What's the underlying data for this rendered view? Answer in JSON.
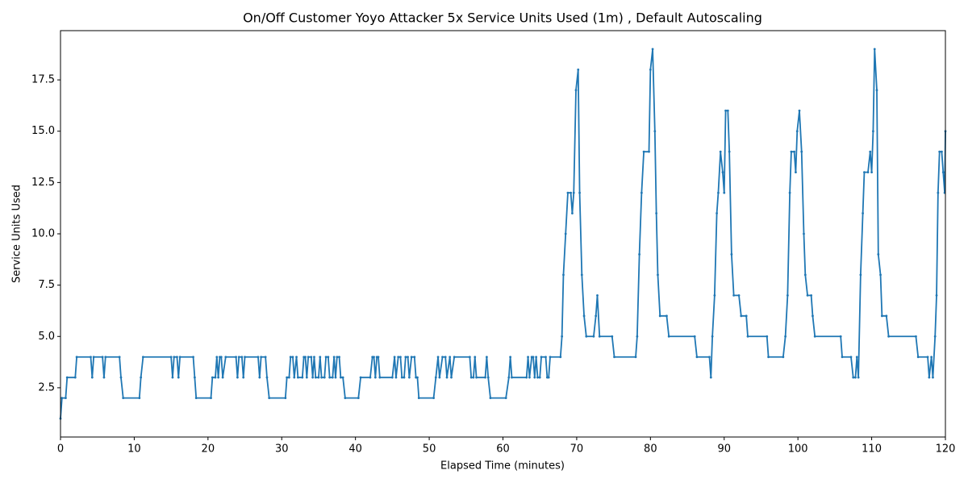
{
  "chart_data": {
    "type": "line",
    "title": "On/Off Customer Yoyo Attacker 5x Service Units Used (1m) , Default Autoscaling",
    "x_label": "Elapsed Time (minutes)",
    "y_label": "Service Units Used",
    "color": "#1f77b4",
    "xlim": [
      0,
      120
    ],
    "ylim": [
      0.1,
      19.9
    ],
    "xticks": [
      0,
      10,
      20,
      30,
      40,
      50,
      60,
      70,
      80,
      90,
      100,
      110,
      120
    ],
    "yticks": [
      2.5,
      {
        "value": 5,
        "label": "5.0"
      },
      7.5,
      {
        "value": 10,
        "label": "10.0"
      },
      12.5,
      {
        "value": 15,
        "label": "15.0"
      },
      17.5
    ],
    "x": [
      0,
      0.2,
      0.7,
      0.9,
      2,
      2.2,
      4.1,
      4.3,
      4.5,
      5.7,
      5.9,
      6.1,
      8,
      8.2,
      8.5,
      10.7,
      10.9,
      11.2,
      15,
      15.2,
      15.4,
      15.8,
      16,
      16.2,
      18,
      18.2,
      18.4,
      20.4,
      20.6,
      21,
      21.2,
      21.4,
      21.6,
      21.8,
      22,
      22.4,
      23.8,
      24,
      24.2,
      24.6,
      24.8,
      25,
      26.8,
      27,
      27.2,
      27.8,
      28,
      28.3,
      30.5,
      30.7,
      31,
      31.2,
      31.5,
      31.7,
      32,
      32.2,
      32.8,
      33,
      33.2,
      33.4,
      33.6,
      34,
      34.2,
      34.4,
      34.6,
      35,
      35.2,
      35.4,
      35.8,
      36,
      36.3,
      36.5,
      36.9,
      37.1,
      37.3,
      37.5,
      37.8,
      38,
      38.3,
      38.6,
      40.4,
      40.7,
      42,
      42.3,
      42.5,
      42.7,
      42.9,
      43.1,
      43.3,
      45,
      45.3,
      45.5,
      45.8,
      46.1,
      46.3,
      46.6,
      46.8,
      47.1,
      47.3,
      47.6,
      48,
      48.2,
      48.4,
      48.6,
      50.6,
      50.9,
      51.2,
      51.4,
      51.8,
      52.2,
      52.4,
      52.8,
      53,
      53.4,
      55.5,
      55.7,
      56,
      56.2,
      56.4,
      57.6,
      57.8,
      58,
      58.3,
      60.4,
      60.8,
      61,
      61.2,
      63.2,
      63.4,
      63.6,
      63.9,
      64.1,
      64.3,
      64.5,
      64.7,
      65,
      65.2,
      65.8,
      66,
      66.2,
      66.4,
      67.8,
      68,
      68.2,
      68.5,
      68.8,
      69.2,
      69.4,
      69.6,
      69.9,
      70.2,
      70.4,
      70.7,
      71,
      71.3,
      72.3,
      72.6,
      72.8,
      73.1,
      74.8,
      75.1,
      78,
      78.2,
      78.5,
      78.8,
      79.1,
      79.8,
      80,
      80.3,
      80.6,
      80.8,
      81,
      81.3,
      82.2,
      82.5,
      86,
      86.3,
      88,
      88.2,
      88.4,
      88.7,
      89,
      89.2,
      89.5,
      89.8,
      90,
      90.2,
      90.5,
      90.7,
      91,
      91.3,
      92,
      92.3,
      93,
      93.2,
      95.8,
      96,
      98,
      98.3,
      98.6,
      98.9,
      99.1,
      99.5,
      99.7,
      99.9,
      100.2,
      100.5,
      100.8,
      101,
      101.3,
      101.8,
      102,
      102.3,
      105.8,
      106,
      107.2,
      107.5,
      107.8,
      108,
      108.2,
      108.5,
      108.8,
      109,
      109.5,
      109.8,
      110,
      110.2,
      110.4,
      110.7,
      110.9,
      111.2,
      111.4,
      112,
      112.3,
      116,
      116.3,
      117.6,
      117.8,
      118.1,
      118.3,
      118.6,
      118.8,
      119,
      119.2,
      119.5,
      119.7,
      119.9,
      120
    ],
    "values": [
      1,
      2,
      2,
      3,
      3,
      4,
      4,
      3,
      4,
      4,
      3,
      4,
      4,
      3,
      2,
      2,
      3,
      4,
      4,
      3,
      4,
      4,
      3,
      4,
      4,
      3,
      2,
      2,
      3,
      3,
      4,
      3,
      4,
      4,
      3,
      4,
      4,
      3,
      4,
      4,
      3,
      4,
      4,
      3,
      4,
      4,
      3,
      2,
      2,
      3,
      3,
      4,
      4,
      3,
      4,
      3,
      3,
      4,
      4,
      3,
      4,
      4,
      3,
      4,
      3,
      3,
      4,
      3,
      3,
      4,
      4,
      3,
      3,
      4,
      3,
      4,
      4,
      3,
      3,
      2,
      2,
      3,
      3,
      4,
      4,
      3,
      4,
      4,
      3,
      3,
      4,
      3,
      4,
      4,
      3,
      3,
      4,
      4,
      3,
      4,
      4,
      3,
      3,
      2,
      2,
      3,
      4,
      3,
      4,
      4,
      3,
      4,
      3,
      4,
      4,
      3,
      3,
      4,
      3,
      3,
      4,
      3,
      2,
      2,
      3,
      4,
      3,
      3,
      4,
      3,
      4,
      4,
      3,
      4,
      3,
      3,
      4,
      4,
      3,
      3,
      4,
      4,
      5,
      8,
      10,
      12,
      12,
      11,
      12,
      17,
      18,
      12,
      8,
      6,
      5,
      5,
      6,
      7,
      5,
      5,
      4,
      4,
      5,
      9,
      12,
      14,
      14,
      18,
      19,
      15,
      11,
      8,
      6,
      6,
      5,
      5,
      4,
      4,
      3,
      5,
      7,
      11,
      12,
      14,
      13,
      12,
      16,
      16,
      14,
      9,
      7,
      7,
      6,
      6,
      5,
      5,
      4,
      4,
      5,
      7,
      12,
      14,
      14,
      13,
      15,
      16,
      14,
      10,
      8,
      7,
      7,
      6,
      5,
      5,
      4,
      4,
      3,
      3,
      4,
      3,
      8,
      11,
      13,
      13,
      14,
      13,
      15,
      19,
      17,
      9,
      8,
      6,
      6,
      5,
      5,
      4,
      4,
      3,
      4,
      3,
      5,
      7,
      12,
      14,
      14,
      13,
      12,
      15
    ]
  }
}
